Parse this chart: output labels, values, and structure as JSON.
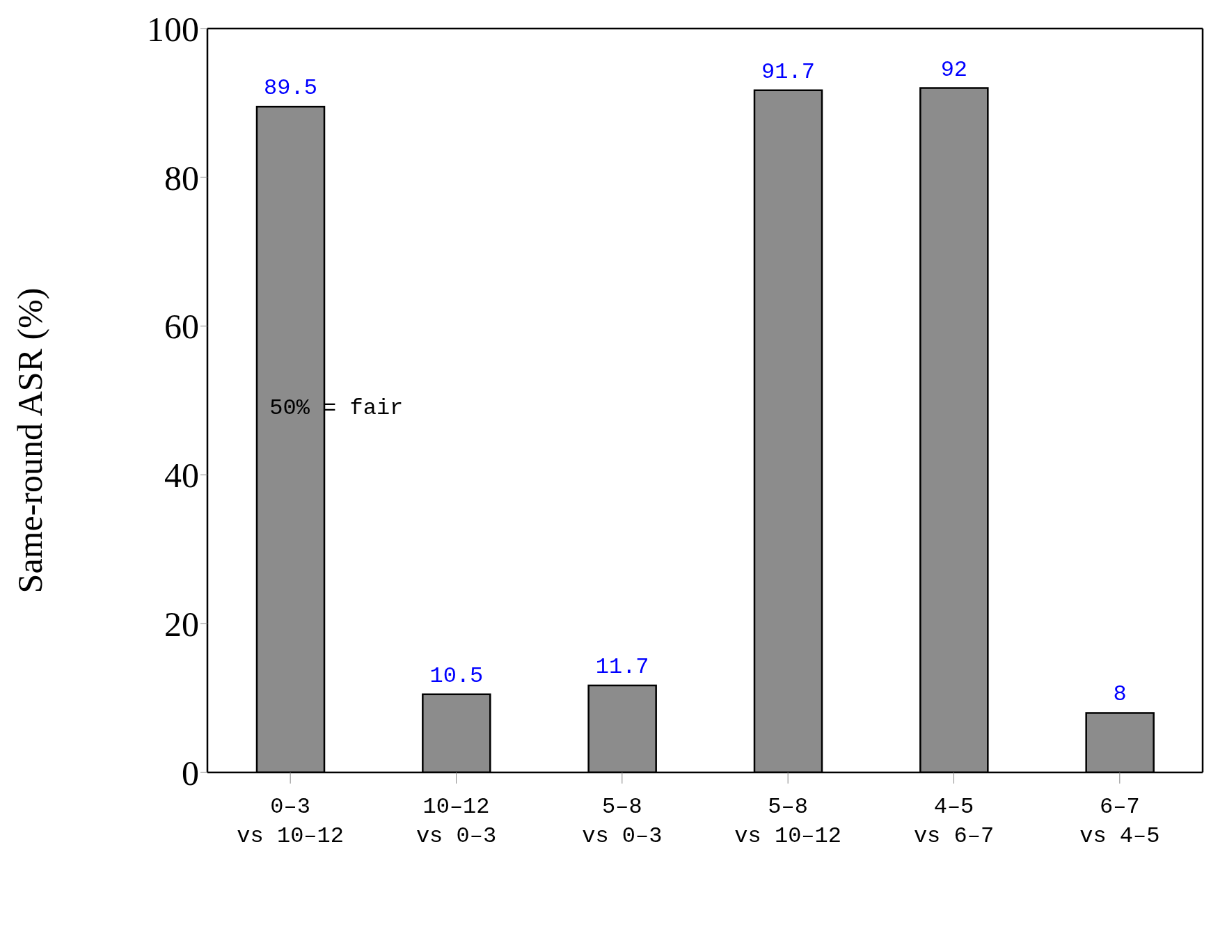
{
  "chart_data": {
    "type": "bar",
    "ylabel": "Same-round ASR (%)",
    "categories": [
      "0–3\nvs 10–12",
      "10–12\nvs 0–3",
      "5–8\nvs 0–3",
      "5–8\nvs 10–12",
      "4–5\nvs 6–7",
      "6–7\nvs 4–5"
    ],
    "values": [
      89.5,
      10.5,
      11.7,
      91.7,
      92,
      8
    ],
    "color": "#8c8c8c",
    "ylim": [
      0,
      100
    ],
    "yticks": [
      0,
      20,
      40,
      60,
      80,
      100
    ],
    "data_labels": true,
    "annotations": [
      "50% = fair"
    ],
    "grid": false
  }
}
